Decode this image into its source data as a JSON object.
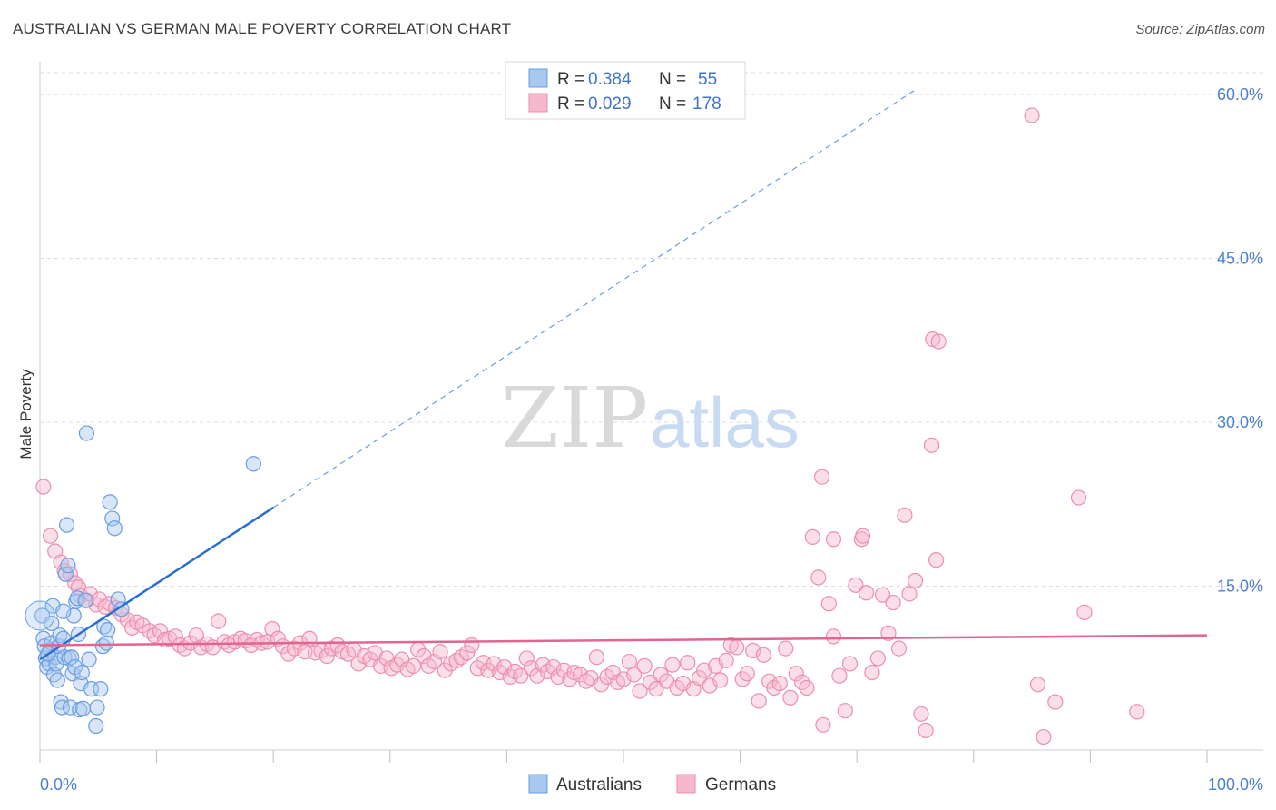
{
  "title": "AUSTRALIAN VS GERMAN MALE POVERTY CORRELATION CHART",
  "source": "Source: ZipAtlas.com",
  "watermark": {
    "zip": "ZIP",
    "atlas": "atlas"
  },
  "colors": {
    "blue_fill": "#a9c8f0",
    "blue_stroke": "#6a9de0",
    "blue_line": "#2a6fd0",
    "pink_fill": "#f6b8cc",
    "pink_stroke": "#ec8eaf",
    "pink_line": "#e2658f",
    "tick_text": "#4a7fd1",
    "grid": "#dcdcdc"
  },
  "legend_box": {
    "rows": [
      {
        "r_label": "R =",
        "r_value": "0.384",
        "n_label": "N =",
        "n_value": "55"
      },
      {
        "r_label": "R =",
        "r_value": "0.029",
        "n_label": "N =",
        "n_value": "178"
      }
    ]
  },
  "chart_data": {
    "type": "scatter",
    "xlabel": "",
    "ylabel": "Male Poverty",
    "xlim": [
      0,
      100
    ],
    "ylim": [
      0,
      63
    ],
    "x_tick_labels": [
      "0.0%",
      "100.0%"
    ],
    "y_ticks": [
      15,
      30,
      45,
      60
    ],
    "y_tick_labels": [
      "15.0%",
      "30.0%",
      "45.0%",
      "60.0%"
    ],
    "grid": true,
    "legend_position": "bottom",
    "series": [
      {
        "name": "Australians",
        "trend": {
          "x0": 0,
          "y0": 8.3,
          "x1": 20,
          "y1": 22.2,
          "dashed_to_x": 75
        },
        "points": [
          [
            0.2,
            12.3
          ],
          [
            0.3,
            10.2
          ],
          [
            0.4,
            9.5
          ],
          [
            0.5,
            8.4
          ],
          [
            0.6,
            7.6
          ],
          [
            0.8,
            7.9
          ],
          [
            0.9,
            9.2
          ],
          [
            1.0,
            9.8
          ],
          [
            1.1,
            13.2
          ],
          [
            1.2,
            6.9
          ],
          [
            1.3,
            8.5
          ],
          [
            1.4,
            7.9
          ],
          [
            1.5,
            6.4
          ],
          [
            1.6,
            9.5
          ],
          [
            1.7,
            10.5
          ],
          [
            1.8,
            4.4
          ],
          [
            1.9,
            3.9
          ],
          [
            2.0,
            10.2
          ],
          [
            2.1,
            8.5
          ],
          [
            2.2,
            16.1
          ],
          [
            2.3,
            20.6
          ],
          [
            2.4,
            16.9
          ],
          [
            2.5,
            8.4
          ],
          [
            2.6,
            3.9
          ],
          [
            2.7,
            8.5
          ],
          [
            2.8,
            7.0
          ],
          [
            2.9,
            12.3
          ],
          [
            3.0,
            7.6
          ],
          [
            3.1,
            13.6
          ],
          [
            3.2,
            13.9
          ],
          [
            3.4,
            3.7
          ],
          [
            3.5,
            6.1
          ],
          [
            3.6,
            7.1
          ],
          [
            3.7,
            3.8
          ],
          [
            3.9,
            13.7
          ],
          [
            4.0,
            29.0
          ],
          [
            4.2,
            8.3
          ],
          [
            4.4,
            5.6
          ],
          [
            4.8,
            2.2
          ],
          [
            4.9,
            3.9
          ],
          [
            5.2,
            5.6
          ],
          [
            5.4,
            9.5
          ],
          [
            5.5,
            11.3
          ],
          [
            5.7,
            9.8
          ],
          [
            5.8,
            11.0
          ],
          [
            6.0,
            22.7
          ],
          [
            6.2,
            21.2
          ],
          [
            6.4,
            20.3
          ],
          [
            6.7,
            13.8
          ],
          [
            7.0,
            12.9
          ],
          [
            1.0,
            11.6
          ],
          [
            2.0,
            12.7
          ],
          [
            0.7,
            8.8
          ],
          [
            3.3,
            10.6
          ],
          [
            18.3,
            26.2
          ]
        ]
      },
      {
        "name": "Germans",
        "trend": {
          "x0": 0,
          "y0": 9.6,
          "x1": 100,
          "y1": 10.5
        },
        "points": [
          [
            0.3,
            24.1
          ],
          [
            0.9,
            19.6
          ],
          [
            1.3,
            18.2
          ],
          [
            1.8,
            17.2
          ],
          [
            2.1,
            16.4
          ],
          [
            2.6,
            16.1
          ],
          [
            3.0,
            15.3
          ],
          [
            3.3,
            14.9
          ],
          [
            3.5,
            14.1
          ],
          [
            4.0,
            13.7
          ],
          [
            4.3,
            14.3
          ],
          [
            4.8,
            13.3
          ],
          [
            5.1,
            13.8
          ],
          [
            5.6,
            13.1
          ],
          [
            6.0,
            13.4
          ],
          [
            6.5,
            13.0
          ],
          [
            7.0,
            12.4
          ],
          [
            7.5,
            11.9
          ],
          [
            7.9,
            11.2
          ],
          [
            8.3,
            11.7
          ],
          [
            8.8,
            11.4
          ],
          [
            9.4,
            10.9
          ],
          [
            9.8,
            10.5
          ],
          [
            10.3,
            10.9
          ],
          [
            10.7,
            10.1
          ],
          [
            11.1,
            10.2
          ],
          [
            11.6,
            10.4
          ],
          [
            12.0,
            9.6
          ],
          [
            12.4,
            9.3
          ],
          [
            12.9,
            9.8
          ],
          [
            13.4,
            10.5
          ],
          [
            13.8,
            9.4
          ],
          [
            14.3,
            9.7
          ],
          [
            14.8,
            9.4
          ],
          [
            15.3,
            11.8
          ],
          [
            15.8,
            9.9
          ],
          [
            16.2,
            9.6
          ],
          [
            16.7,
            9.9
          ],
          [
            17.2,
            10.2
          ],
          [
            17.6,
            10.0
          ],
          [
            18.1,
            9.6
          ],
          [
            18.6,
            10.1
          ],
          [
            19.0,
            9.8
          ],
          [
            19.5,
            9.9
          ],
          [
            19.9,
            11.1
          ],
          [
            20.4,
            10.2
          ],
          [
            20.8,
            9.5
          ],
          [
            21.3,
            8.8
          ],
          [
            21.8,
            9.3
          ],
          [
            22.3,
            9.8
          ],
          [
            22.7,
            9.0
          ],
          [
            23.1,
            10.2
          ],
          [
            23.6,
            8.9
          ],
          [
            24.1,
            9.1
          ],
          [
            24.6,
            8.6
          ],
          [
            25.0,
            9.3
          ],
          [
            25.5,
            9.6
          ],
          [
            25.9,
            9.0
          ],
          [
            26.4,
            8.8
          ],
          [
            26.9,
            9.2
          ],
          [
            27.3,
            7.9
          ],
          [
            27.8,
            8.6
          ],
          [
            28.3,
            8.3
          ],
          [
            28.7,
            8.9
          ],
          [
            29.2,
            7.7
          ],
          [
            29.7,
            8.4
          ],
          [
            30.1,
            7.5
          ],
          [
            30.6,
            7.8
          ],
          [
            31.0,
            8.3
          ],
          [
            31.5,
            7.4
          ],
          [
            32.0,
            7.7
          ],
          [
            32.4,
            9.2
          ],
          [
            32.9,
            8.6
          ],
          [
            33.3,
            7.7
          ],
          [
            33.8,
            8.1
          ],
          [
            34.3,
            9.0
          ],
          [
            34.7,
            7.3
          ],
          [
            35.2,
            7.9
          ],
          [
            35.7,
            8.2
          ],
          [
            36.1,
            8.5
          ],
          [
            36.6,
            8.9
          ],
          [
            37.0,
            9.6
          ],
          [
            37.5,
            7.5
          ],
          [
            38.0,
            8.0
          ],
          [
            38.4,
            7.3
          ],
          [
            38.9,
            7.9
          ],
          [
            39.4,
            7.1
          ],
          [
            39.8,
            7.6
          ],
          [
            40.3,
            6.7
          ],
          [
            40.7,
            7.2
          ],
          [
            41.2,
            6.8
          ],
          [
            41.7,
            8.4
          ],
          [
            42.1,
            7.5
          ],
          [
            42.6,
            6.8
          ],
          [
            43.1,
            7.8
          ],
          [
            43.5,
            7.2
          ],
          [
            44.0,
            7.6
          ],
          [
            44.4,
            6.7
          ],
          [
            44.9,
            7.3
          ],
          [
            45.4,
            6.5
          ],
          [
            45.8,
            7.1
          ],
          [
            46.3,
            6.9
          ],
          [
            46.8,
            6.3
          ],
          [
            47.2,
            6.6
          ],
          [
            47.7,
            8.5
          ],
          [
            48.1,
            6.0
          ],
          [
            48.6,
            6.7
          ],
          [
            49.1,
            7.1
          ],
          [
            49.5,
            6.2
          ],
          [
            50.0,
            6.5
          ],
          [
            50.5,
            8.1
          ],
          [
            50.9,
            6.9
          ],
          [
            51.4,
            5.4
          ],
          [
            51.8,
            7.7
          ],
          [
            52.3,
            6.2
          ],
          [
            52.8,
            5.6
          ],
          [
            53.2,
            6.9
          ],
          [
            53.7,
            6.3
          ],
          [
            54.2,
            7.8
          ],
          [
            54.6,
            5.7
          ],
          [
            55.1,
            6.1
          ],
          [
            55.5,
            8.0
          ],
          [
            56.0,
            5.6
          ],
          [
            56.5,
            6.6
          ],
          [
            56.9,
            7.3
          ],
          [
            57.4,
            5.9
          ],
          [
            57.9,
            7.7
          ],
          [
            58.3,
            6.4
          ],
          [
            58.8,
            8.2
          ],
          [
            59.2,
            9.6
          ],
          [
            59.7,
            9.4
          ],
          [
            60.2,
            6.5
          ],
          [
            60.6,
            7.0
          ],
          [
            61.1,
            9.1
          ],
          [
            61.6,
            4.5
          ],
          [
            62.0,
            8.7
          ],
          [
            62.5,
            6.3
          ],
          [
            62.9,
            5.7
          ],
          [
            63.4,
            6.1
          ],
          [
            63.9,
            9.3
          ],
          [
            64.3,
            4.8
          ],
          [
            64.8,
            7.0
          ],
          [
            65.3,
            6.2
          ],
          [
            65.7,
            5.7
          ],
          [
            66.2,
            19.5
          ],
          [
            66.7,
            15.8
          ],
          [
            67.1,
            2.3
          ],
          [
            67.6,
            13.4
          ],
          [
            68.0,
            10.4
          ],
          [
            68.5,
            6.8
          ],
          [
            69.0,
            3.6
          ],
          [
            69.4,
            7.9
          ],
          [
            69.9,
            15.1
          ],
          [
            70.4,
            19.3
          ],
          [
            70.8,
            14.4
          ],
          [
            71.3,
            7.1
          ],
          [
            71.8,
            8.4
          ],
          [
            72.2,
            14.2
          ],
          [
            72.7,
            10.7
          ],
          [
            73.1,
            13.5
          ],
          [
            73.6,
            9.3
          ],
          [
            74.1,
            21.5
          ],
          [
            74.5,
            14.3
          ],
          [
            75.0,
            15.5
          ],
          [
            75.5,
            3.3
          ],
          [
            75.9,
            1.8
          ],
          [
            76.4,
            27.9
          ],
          [
            76.8,
            17.4
          ],
          [
            85.5,
            6.0
          ],
          [
            86.0,
            1.2
          ],
          [
            87.0,
            4.4
          ],
          [
            89.0,
            23.1
          ],
          [
            89.5,
            12.6
          ],
          [
            94.0,
            3.5
          ],
          [
            76.5,
            37.6
          ],
          [
            85.0,
            58.1
          ],
          [
            77.0,
            37.4
          ],
          [
            67.0,
            25.0
          ],
          [
            68.0,
            19.3
          ],
          [
            70.5,
            19.6
          ]
        ]
      }
    ]
  }
}
